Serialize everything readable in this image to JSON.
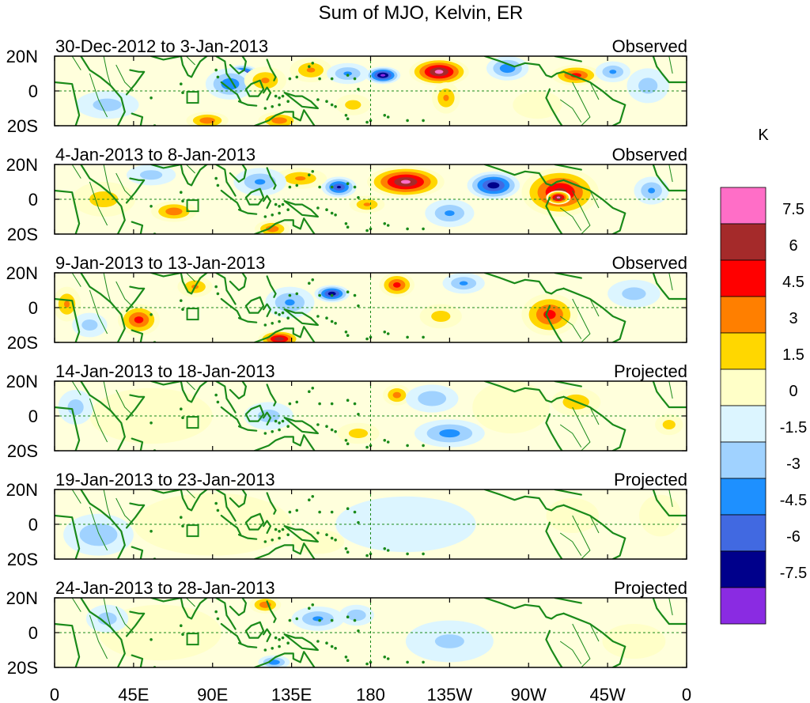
{
  "title": "Sum of MJO, Kelvin, ER",
  "colorbar": {
    "unit": "K",
    "tick_labels": [
      "7.5",
      "6",
      "4.5",
      "3",
      "1.5",
      "0",
      "-1.5",
      "-3",
      "-4.5",
      "-6",
      "-7.5"
    ],
    "colors": [
      "#ff6ec7",
      "#a52a2a",
      "#ff0000",
      "#ff7f00",
      "#ffd700",
      "#ffffc8",
      "#dcf5ff",
      "#a0d2ff",
      "#1e90ff",
      "#4169e1",
      "#00008b",
      "#8a2be2"
    ]
  },
  "axes": {
    "lat_labels": [
      "20N",
      "0",
      "20S"
    ],
    "lon_labels": [
      "0",
      "45E",
      "90E",
      "135E",
      "180",
      "135W",
      "90W",
      "45W",
      "0"
    ],
    "lon_range": [
      0,
      360
    ],
    "lat_range": [
      -20,
      20
    ]
  },
  "colors": {
    "coast": "#1a8a1a",
    "frame": "#000000",
    "guide": "#1a8a1a"
  },
  "panels": [
    {
      "date_range": "30-Dec-2012 to 3-Jan-2013",
      "status": "Observed",
      "anomalies": [
        {
          "lon": 107,
          "lat": 9,
          "rlon": 10,
          "rlat": 6,
          "value": -9
        },
        {
          "lon": 100,
          "lat": 4,
          "rlon": 14,
          "rlat": 9,
          "value": -4
        },
        {
          "lon": 120,
          "lat": 6,
          "rlon": 12,
          "rlat": 8,
          "value": 3
        },
        {
          "lon": 146,
          "lat": 12,
          "rlon": 12,
          "rlat": 7,
          "value": 3
        },
        {
          "lon": 167,
          "lat": 10,
          "rlon": 12,
          "rlat": 6,
          "value": -3
        },
        {
          "lon": 187,
          "lat": 9,
          "rlon": 10,
          "rlat": 5,
          "value": -8
        },
        {
          "lon": 219,
          "lat": 11,
          "rlon": 17,
          "rlat": 8,
          "value": 8
        },
        {
          "lon": 223,
          "lat": -4,
          "rlon": 8,
          "rlat": 9,
          "value": 3
        },
        {
          "lon": 258,
          "lat": 13,
          "rlon": 12,
          "rlat": 7,
          "value": -4
        },
        {
          "lon": 297,
          "lat": 9,
          "rlon": 14,
          "rlat": 6,
          "value": 5
        },
        {
          "lon": 318,
          "lat": 11,
          "rlon": 10,
          "rlat": 6,
          "value": -3
        },
        {
          "lon": 87,
          "lat": -17,
          "rlon": 12,
          "rlat": 5,
          "value": 4
        },
        {
          "lon": 128,
          "lat": -17,
          "rlon": 12,
          "rlat": 5,
          "value": 4
        },
        {
          "lon": 170,
          "lat": -8,
          "rlon": 10,
          "rlat": 6,
          "value": 2
        },
        {
          "lon": 30,
          "lat": -8,
          "rlon": 18,
          "rlat": 8,
          "value": -2
        },
        {
          "lon": 275,
          "lat": -8,
          "rlon": 14,
          "rlat": 8,
          "value": 1
        },
        {
          "lon": 338,
          "lat": 3,
          "rlon": 12,
          "rlat": 10,
          "value": -2
        }
      ]
    },
    {
      "date_range": "4-Jan-2013 to 8-Jan-2013",
      "status": "Observed",
      "anomalies": [
        {
          "lon": 200,
          "lat": 10,
          "rlon": 22,
          "rlat": 9,
          "value": 7.8
        },
        {
          "lon": 162,
          "lat": 7,
          "rlon": 10,
          "rlat": 6,
          "value": -6
        },
        {
          "lon": 140,
          "lat": 12,
          "rlon": 15,
          "rlat": 6,
          "value": 3
        },
        {
          "lon": 117,
          "lat": 10,
          "rlon": 15,
          "rlat": 8,
          "value": -3
        },
        {
          "lon": 250,
          "lat": 8,
          "rlon": 15,
          "rlat": 8,
          "value": -7
        },
        {
          "lon": 288,
          "lat": 4,
          "rlon": 22,
          "rlat": 14,
          "value": 6.5
        },
        {
          "lon": 287,
          "lat": 1,
          "rlon": 7,
          "rlat": 4,
          "value": 8
        },
        {
          "lon": 178,
          "lat": -3,
          "rlon": 10,
          "rlat": 5,
          "value": 3
        },
        {
          "lon": 68,
          "lat": -7,
          "rlon": 13,
          "rlat": 6,
          "value": 4
        },
        {
          "lon": 28,
          "lat": 0,
          "rlon": 18,
          "rlat": 10,
          "value": 2
        },
        {
          "lon": 124,
          "lat": -17,
          "rlon": 10,
          "rlat": 5,
          "value": 4
        },
        {
          "lon": 225,
          "lat": -8,
          "rlon": 14,
          "rlat": 8,
          "value": -3
        },
        {
          "lon": 340,
          "lat": 5,
          "rlon": 10,
          "rlat": 8,
          "value": -3
        },
        {
          "lon": 55,
          "lat": 14,
          "rlon": 14,
          "rlat": 6,
          "value": -2
        }
      ]
    },
    {
      "date_range": "9-Jan-2013 to 13-Jan-2013",
      "status": "Observed",
      "anomalies": [
        {
          "lon": 48,
          "lat": -7,
          "rlon": 12,
          "rlat": 9,
          "value": 5
        },
        {
          "lon": 7,
          "lat": 2,
          "rlon": 8,
          "rlat": 10,
          "value": 3
        },
        {
          "lon": 158,
          "lat": 8,
          "rlon": 10,
          "rlat": 5,
          "value": -7
        },
        {
          "lon": 134,
          "lat": 3,
          "rlon": 14,
          "rlat": 9,
          "value": -3
        },
        {
          "lon": 195,
          "lat": 13,
          "rlon": 10,
          "rlat": 7,
          "value": 5
        },
        {
          "lon": 233,
          "lat": 14,
          "rlon": 12,
          "rlat": 6,
          "value": -3
        },
        {
          "lon": 282,
          "lat": -4,
          "rlon": 16,
          "rlat": 12,
          "value": 5
        },
        {
          "lon": 128,
          "lat": -18,
          "rlon": 12,
          "rlat": 5,
          "value": 7
        },
        {
          "lon": 80,
          "lat": 12,
          "rlon": 10,
          "rlat": 6,
          "value": 3
        },
        {
          "lon": 220,
          "lat": -5,
          "rlon": 12,
          "rlat": 7,
          "value": 2
        },
        {
          "lon": 20,
          "lat": -10,
          "rlon": 10,
          "rlat": 7,
          "value": -2
        },
        {
          "lon": 330,
          "lat": 8,
          "rlon": 15,
          "rlat": 8,
          "value": -2
        }
      ]
    },
    {
      "date_range": "14-Jan-2013 to 18-Jan-2013",
      "status": "Projected",
      "anomalies": [
        {
          "lon": 195,
          "lat": 12,
          "rlon": 8,
          "rlat": 6,
          "value": 3.5
        },
        {
          "lon": 225,
          "lat": -10,
          "rlon": 20,
          "rlat": 8,
          "value": -3.5
        },
        {
          "lon": 215,
          "lat": 10,
          "rlon": 15,
          "rlat": 8,
          "value": -2.5
        },
        {
          "lon": 55,
          "lat": 0,
          "rlon": 35,
          "rlat": 16,
          "value": 1
        },
        {
          "lon": 12,
          "lat": 5,
          "rlon": 10,
          "rlat": 10,
          "value": -2
        },
        {
          "lon": 122,
          "lat": 0,
          "rlon": 14,
          "rlat": 8,
          "value": -2
        },
        {
          "lon": 173,
          "lat": -10,
          "rlon": 12,
          "rlat": 6,
          "value": 2
        },
        {
          "lon": 297,
          "lat": 8,
          "rlon": 14,
          "rlat": 8,
          "value": 2.5
        },
        {
          "lon": 350,
          "lat": -5,
          "rlon": 8,
          "rlat": 6,
          "value": 2
        },
        {
          "lon": 260,
          "lat": 5,
          "rlon": 22,
          "rlat": 15,
          "value": 0.8
        }
      ]
    },
    {
      "date_range": "19-Jan-2013 to 23-Jan-2013",
      "status": "Projected",
      "anomalies": [
        {
          "lon": 25,
          "lat": -6,
          "rlon": 20,
          "rlat": 12,
          "value": -2.5
        },
        {
          "lon": 90,
          "lat": 0,
          "rlon": 45,
          "rlat": 18,
          "value": 0.8
        },
        {
          "lon": 200,
          "lat": 0,
          "rlon": 40,
          "rlat": 16,
          "value": -1
        },
        {
          "lon": 295,
          "lat": 5,
          "rlon": 15,
          "rlat": 10,
          "value": 0.8
        },
        {
          "lon": 345,
          "lat": 5,
          "rlon": 12,
          "rlat": 12,
          "value": 0.8
        },
        {
          "lon": 150,
          "lat": -10,
          "rlon": 15,
          "rlat": 7,
          "value": 0.8
        }
      ]
    },
    {
      "date_range": "24-Jan-2013 to 28-Jan-2013",
      "status": "Projected",
      "anomalies": [
        {
          "lon": 120,
          "lat": 16,
          "rlon": 9,
          "rlat": 5,
          "value": 4
        },
        {
          "lon": 150,
          "lat": 8,
          "rlon": 15,
          "rlat": 7,
          "value": -3
        },
        {
          "lon": 172,
          "lat": 10,
          "rlon": 10,
          "rlat": 6,
          "value": -2.5
        },
        {
          "lon": 125,
          "lat": -17,
          "rlon": 9,
          "rlat": 4,
          "value": -4
        },
        {
          "lon": 60,
          "lat": 0,
          "rlon": 35,
          "rlat": 16,
          "value": 0.8
        },
        {
          "lon": 30,
          "lat": 8,
          "rlon": 12,
          "rlat": 8,
          "value": -2
        },
        {
          "lon": 225,
          "lat": -5,
          "rlon": 25,
          "rlat": 12,
          "value": -1.5
        },
        {
          "lon": 330,
          "lat": -5,
          "rlon": 18,
          "rlat": 10,
          "value": 0.8
        }
      ]
    }
  ]
}
